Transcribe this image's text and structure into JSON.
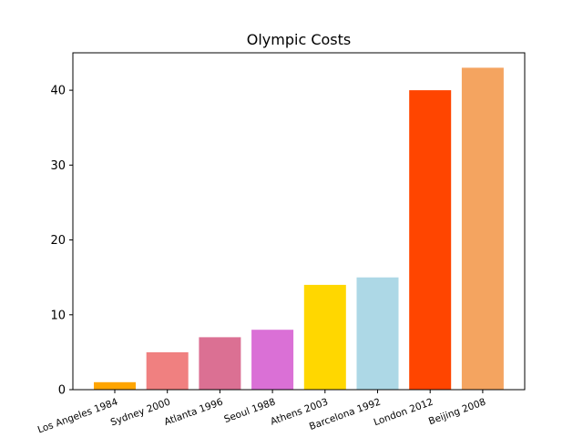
{
  "chart_data": {
    "type": "bar",
    "title": "Olympic Costs",
    "xlabel": "",
    "ylabel": "",
    "categories": [
      "Los Angeles 1984",
      "Sydney 2000",
      "Atlanta 1996",
      "Seoul 1988",
      "Athens 2003",
      "Barcelona 1992",
      "London 2012",
      "Beijing 2008"
    ],
    "values": [
      1,
      5,
      7,
      8,
      14,
      15,
      40,
      43
    ],
    "colors": [
      "#ffa500",
      "#f08080",
      "#db7093",
      "#da70d6",
      "#ffd700",
      "#add8e6",
      "#ff4500",
      "#f4a460"
    ],
    "ylim": [
      0,
      45
    ],
    "yticks": [
      0,
      10,
      20,
      30,
      40
    ],
    "grid": false,
    "legend": "none"
  }
}
